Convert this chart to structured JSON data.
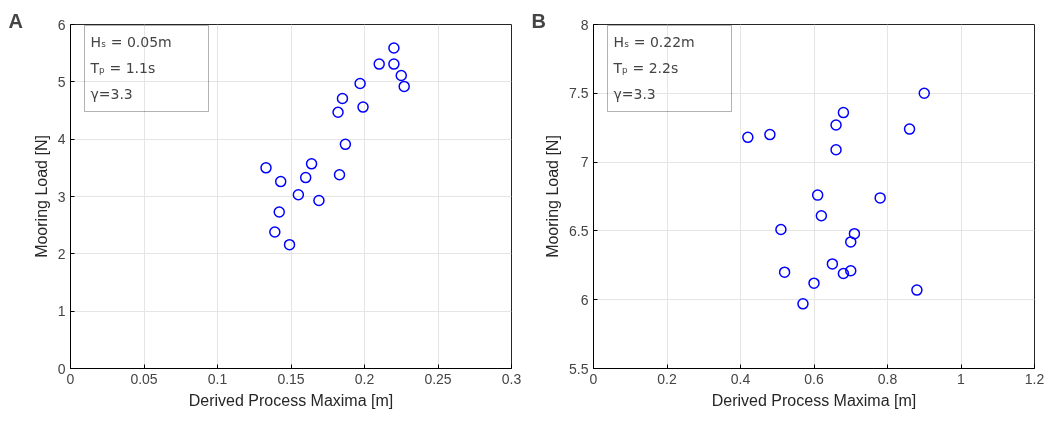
{
  "chart_data": [
    {
      "type": "scatter",
      "xlabel": "Derived Process Maxima [m]",
      "ylabel": "Mooring Load [N]",
      "annotations": [
        "A",
        "Hₛ = 0.05m",
        "Tₚ = 1.1s",
        "γ=3.3"
      ],
      "xlim": [
        0,
        0.3
      ],
      "xticks": [
        0,
        0.05,
        0.1,
        0.15,
        0.2,
        0.25,
        0.3
      ],
      "ylim": [
        0,
        6
      ],
      "yticks": [
        0,
        1,
        2,
        3,
        4,
        5,
        6
      ],
      "grid": true,
      "marker": "circle",
      "series": [
        {
          "color": "#0000ff",
          "x": [
            0.22,
            0.21,
            0.22,
            0.225,
            0.227,
            0.197,
            0.185,
            0.199,
            0.182,
            0.187,
            0.133,
            0.164,
            0.143,
            0.16,
            0.183,
            0.155,
            0.169,
            0.142,
            0.139,
            0.149
          ],
          "values": [
            5.59,
            5.31,
            5.31,
            5.11,
            4.92,
            4.97,
            4.71,
            4.56,
            4.47,
            3.91,
            3.5,
            3.57,
            3.26,
            3.33,
            3.38,
            3.03,
            2.93,
            2.73,
            2.38,
            2.16
          ]
        }
      ]
    },
    {
      "type": "scatter",
      "xlabel": "Derived Process Maxima [m]",
      "ylabel": "Mooring Load [N]",
      "annotations": [
        "B",
        "Hₛ = 0.22m",
        "Tₚ = 2.2s",
        "γ=3.3"
      ],
      "xlim": [
        0,
        1.2
      ],
      "xticks": [
        0,
        0.2,
        0.4,
        0.6,
        0.8,
        1,
        1.2
      ],
      "ylim": [
        5.5,
        8
      ],
      "yticks": [
        5.5,
        6,
        6.5,
        7,
        7.5,
        8
      ],
      "grid": true,
      "marker": "circle",
      "series": [
        {
          "color": "#0000ff",
          "x": [
            0.9,
            0.68,
            0.66,
            0.86,
            0.42,
            0.48,
            0.66,
            0.61,
            0.78,
            0.62,
            0.51,
            0.71,
            0.7,
            0.65,
            0.52,
            0.68,
            0.7,
            0.6,
            0.88,
            0.57
          ],
          "values": [
            7.5,
            7.36,
            7.27,
            7.24,
            7.18,
            7.2,
            7.09,
            6.76,
            6.74,
            6.61,
            6.51,
            6.48,
            6.42,
            6.26,
            6.2,
            6.19,
            6.21,
            6.12,
            6.07,
            5.97
          ]
        }
      ]
    }
  ]
}
